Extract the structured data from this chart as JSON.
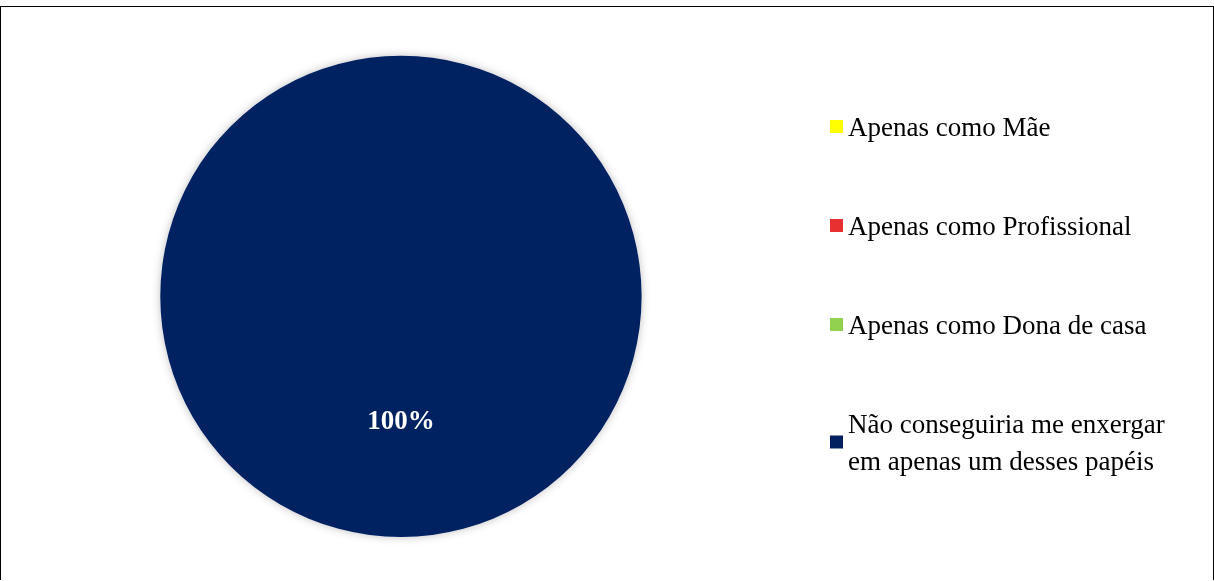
{
  "chart_data": {
    "type": "pie",
    "categories": [
      "Apenas como Mãe",
      "Apenas como Profissional",
      "Apenas como Dona de casa",
      "Não conseguiria me enxergar em apenas um desses papéis"
    ],
    "values": [
      0,
      0,
      0,
      100
    ],
    "colors": [
      "#ffff00",
      "#e83030",
      "#92d050",
      "#002060"
    ],
    "value_labels": [
      null,
      null,
      null,
      "100%"
    ],
    "legend": "right"
  }
}
